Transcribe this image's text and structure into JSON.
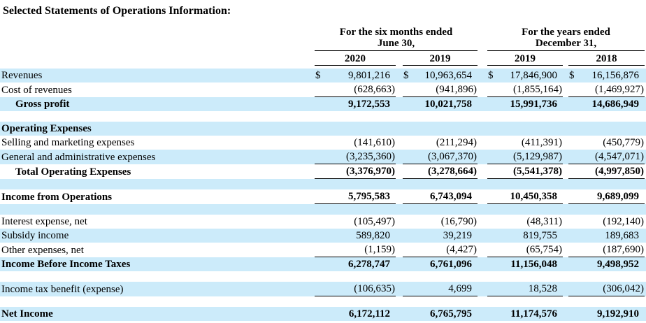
{
  "title": "Selected Statements of Operations Information:",
  "colors": {
    "row_highlight": "#CCEBFA"
  },
  "table": {
    "currency_symbol": "$",
    "column_groups": [
      {
        "line1": "For the six months ended",
        "line2": "June 30,",
        "years": [
          "2020",
          "2019"
        ]
      },
      {
        "line1": "For the years ended",
        "line2": "December 31,",
        "years": [
          "2019",
          "2018"
        ]
      }
    ],
    "rows": [
      {
        "label": "Revenues",
        "values": [
          "9,801,216",
          "10,963,654",
          "17,846,900",
          "16,156,876"
        ],
        "dollar": true,
        "bg": "blue"
      },
      {
        "label": "Cost of revenues",
        "values": [
          "(628,663)",
          "(941,896)",
          "(1,855,164)",
          "(1,469,927)"
        ],
        "bg": "white",
        "underline": true
      },
      {
        "label": "Gross profit",
        "values": [
          "9,172,553",
          "10,021,758",
          "15,991,736",
          "14,686,949"
        ],
        "bold": true,
        "indent": true,
        "bg": "blue"
      },
      {
        "spacer": true,
        "bg": "white"
      },
      {
        "label": "Operating Expenses",
        "values": [
          "",
          "",
          "",
          ""
        ],
        "bold": true,
        "bg": "blue"
      },
      {
        "label": "Selling and marketing expenses",
        "values": [
          "(141,610)",
          "(211,294)",
          "(411,391)",
          "(450,779)"
        ],
        "bg": "white"
      },
      {
        "label": "General and administrative expenses",
        "values": [
          "(3,235,360)",
          "(3,067,370)",
          "(5,129,987)",
          "(4,547,071)"
        ],
        "bg": "blue",
        "underline": true
      },
      {
        "label": "Total Operating Expenses",
        "values": [
          "(3,376,970)",
          "(3,278,664)",
          "(5,541,378)",
          "(4,997,850)"
        ],
        "bold": true,
        "indent": true,
        "bg": "white",
        "underline": true
      },
      {
        "spacer": true,
        "bg": "blue"
      },
      {
        "label": "Income from Operations",
        "values": [
          "5,795,583",
          "6,743,094",
          "10,450,358",
          "9,689,099"
        ],
        "bold": true,
        "bg": "white",
        "underline": true
      },
      {
        "spacer": true,
        "bg": "blue"
      },
      {
        "label": "Interest expense, net",
        "values": [
          "(105,497)",
          "(16,790)",
          "(48,311)",
          "(192,140)"
        ],
        "bg": "white"
      },
      {
        "label": "Subsidy income",
        "values": [
          "589,820",
          "39,219",
          "819,755",
          "189,683"
        ],
        "bg": "blue"
      },
      {
        "label": "Other expenses, net",
        "values": [
          "(1,159)",
          "(4,427)",
          "(65,754)",
          "(187,690)"
        ],
        "bg": "white",
        "underline": true
      },
      {
        "label": "Income Before Income Taxes",
        "values": [
          "6,278,747",
          "6,761,096",
          "11,156,048",
          "9,498,952"
        ],
        "bold": true,
        "bg": "blue"
      },
      {
        "spacer": true,
        "bg": "white"
      },
      {
        "label": "Income tax benefit (expense)",
        "values": [
          "(106,635)",
          "4,699",
          "18,528",
          "(306,042)"
        ],
        "bg": "blue",
        "underline": true
      },
      {
        "spacer": true,
        "bg": "white"
      },
      {
        "label": "Net Income",
        "values": [
          "6,172,112",
          "6,765,795",
          "11,174,576",
          "9,192,910"
        ],
        "bold": true,
        "bg": "blue"
      }
    ]
  }
}
